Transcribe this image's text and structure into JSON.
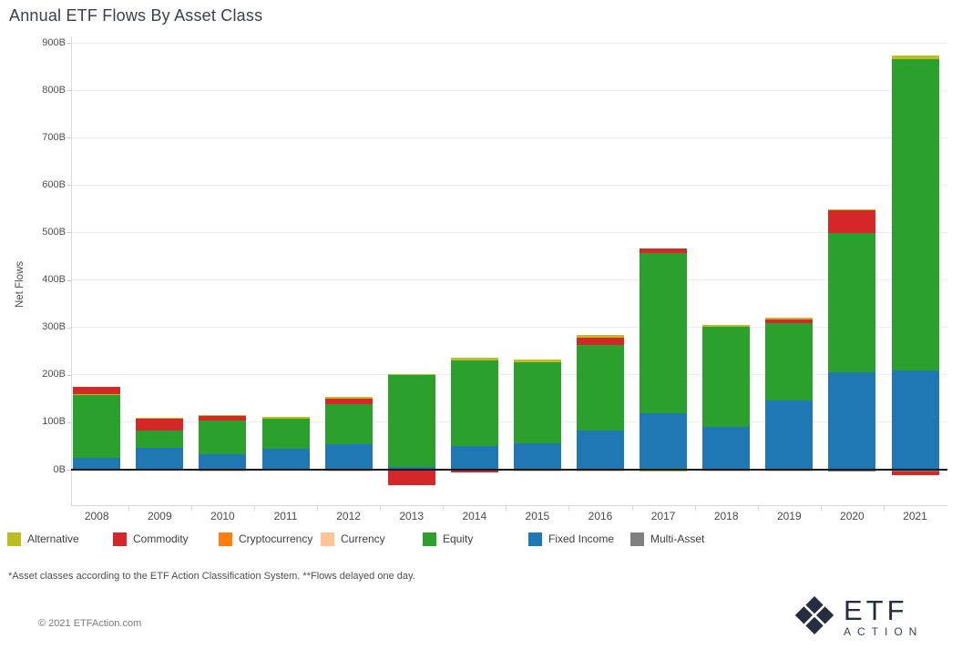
{
  "title": "Annual ETF Flows By Asset Class",
  "chart_data": {
    "type": "bar",
    "stacked": true,
    "title": "Annual ETF Flows By Asset Class",
    "xlabel": "",
    "ylabel": "Net Flows",
    "unit": "billions USD (B)",
    "ylim": [
      -75,
      900
    ],
    "grid": true,
    "legend_position": "bottom",
    "ytick_labels": [
      "0B",
      "100B",
      "200B",
      "300B",
      "400B",
      "500B",
      "600B",
      "700B",
      "800B",
      "900B"
    ],
    "categories": [
      "2008",
      "2009",
      "2010",
      "2011",
      "2012",
      "2013",
      "2014",
      "2015",
      "2016",
      "2017",
      "2018",
      "2019",
      "2020",
      "2021"
    ],
    "series_colors": {
      "Alternative": "#bcbd22",
      "Commodity": "#d62728",
      "Cryptocurrency": "#ff7f0e",
      "Currency": "#ffc493",
      "Equity": "#2ca02c",
      "Fixed Income": "#1f77b4",
      "Multi-Asset": "#808080"
    },
    "bars": [
      {
        "year": "2008",
        "positive": [
          [
            "Fixed Income",
            25
          ],
          [
            "Equity",
            132
          ],
          [
            "Alternative",
            3
          ],
          [
            "Commodity",
            15
          ]
        ],
        "negative": []
      },
      {
        "year": "2009",
        "positive": [
          [
            "Fixed Income",
            46
          ],
          [
            "Equity",
            37
          ],
          [
            "Commodity",
            24
          ],
          [
            "Alternative",
            3
          ]
        ],
        "negative": []
      },
      {
        "year": "2010",
        "positive": [
          [
            "Fixed Income",
            33
          ],
          [
            "Equity",
            70
          ],
          [
            "Commodity",
            10
          ],
          [
            "Alternative",
            2
          ]
        ],
        "negative": [
          [
            "Currency",
            -4
          ]
        ]
      },
      {
        "year": "2011",
        "positive": [
          [
            "Fixed Income",
            44
          ],
          [
            "Equity",
            64
          ],
          [
            "Alternative",
            3
          ]
        ],
        "negative": []
      },
      {
        "year": "2012",
        "positive": [
          [
            "Fixed Income",
            54
          ],
          [
            "Equity",
            85
          ],
          [
            "Commodity",
            10
          ],
          [
            "Alternative",
            5
          ]
        ],
        "negative": [
          [
            "Currency",
            -4
          ]
        ]
      },
      {
        "year": "2013",
        "positive": [
          [
            "Fixed Income",
            5
          ],
          [
            "Equity",
            194
          ],
          [
            "Alternative",
            3
          ]
        ],
        "negative": [
          [
            "Commodity",
            -33
          ]
        ]
      },
      {
        "year": "2014",
        "positive": [
          [
            "Fixed Income",
            50
          ],
          [
            "Equity",
            180
          ],
          [
            "Alternative",
            6
          ]
        ],
        "negative": [
          [
            "Commodity",
            -5
          ]
        ]
      },
      {
        "year": "2015",
        "positive": [
          [
            "Fixed Income",
            56
          ],
          [
            "Equity",
            171
          ],
          [
            "Alternative",
            6
          ]
        ],
        "negative": [
          [
            "Currency",
            -3
          ]
        ]
      },
      {
        "year": "2016",
        "positive": [
          [
            "Fixed Income",
            83
          ],
          [
            "Equity",
            180
          ],
          [
            "Commodity",
            15
          ],
          [
            "Alternative",
            6
          ]
        ],
        "negative": [
          [
            "Currency",
            -4
          ]
        ]
      },
      {
        "year": "2017",
        "positive": [
          [
            "Fixed Income",
            119
          ],
          [
            "Equity",
            338
          ],
          [
            "Commodity",
            9
          ]
        ],
        "negative": [
          [
            "Alternative",
            -4
          ]
        ]
      },
      {
        "year": "2018",
        "positive": [
          [
            "Fixed Income",
            90
          ],
          [
            "Equity",
            212
          ],
          [
            "Alternative",
            4
          ]
        ],
        "negative": [
          [
            "Currency",
            -4
          ]
        ]
      },
      {
        "year": "2019",
        "positive": [
          [
            "Fixed Income",
            146
          ],
          [
            "Equity",
            162
          ],
          [
            "Commodity",
            8
          ],
          [
            "Alternative",
            5
          ]
        ],
        "negative": [
          [
            "Currency",
            -4
          ]
        ]
      },
      {
        "year": "2020",
        "positive": [
          [
            "Fixed Income",
            206
          ],
          [
            "Equity",
            293
          ],
          [
            "Commodity",
            47
          ],
          [
            "Alternative",
            3
          ]
        ],
        "negative": [
          [
            "Multi-Asset",
            -4
          ]
        ]
      },
      {
        "year": "2021",
        "positive": [
          [
            "Fixed Income",
            210
          ],
          [
            "Equity",
            656
          ],
          [
            "Alternative",
            8
          ]
        ],
        "negative": [
          [
            "Multi-Asset",
            -4
          ],
          [
            "Commodity",
            -8
          ]
        ]
      }
    ]
  },
  "legend": {
    "items": [
      {
        "label": "Alternative",
        "color": "#bcbd22"
      },
      {
        "label": "Commodity",
        "color": "#d62728"
      },
      {
        "label": "Cryptocurrency",
        "color": "#ff7f0e"
      },
      {
        "label": "Currency",
        "color": "#ffc493"
      },
      {
        "label": "Equity",
        "color": "#2ca02c"
      },
      {
        "label": "Fixed Income",
        "color": "#1f77b4"
      },
      {
        "label": "Multi-Asset",
        "color": "#808080"
      }
    ]
  },
  "footnote": "*Asset classes according to the ETF Action Classification System. **Flows delayed one day.",
  "copyright": "© 2021 ETFAction.com",
  "logo": {
    "glyph": "❖",
    "line1": "ETF",
    "line2": "ACTION"
  }
}
